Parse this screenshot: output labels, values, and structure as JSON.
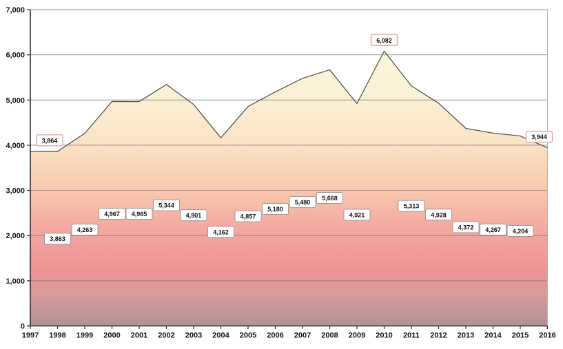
{
  "chart_data": {
    "type": "area",
    "title": "",
    "xlabel": "",
    "ylabel": "",
    "ylim": [
      0,
      7000
    ],
    "y_tick_interval": 1000,
    "y_tick_labels": [
      "0",
      "1,000",
      "2,000",
      "3,000",
      "4,000",
      "5,000",
      "6,000",
      "7,000"
    ],
    "grid": true,
    "legend_position": "none",
    "categories": [
      "1997",
      "1998",
      "1999",
      "2000",
      "2001",
      "2002",
      "2003",
      "2004",
      "2005",
      "2006",
      "2007",
      "2008",
      "2009",
      "2010",
      "2011",
      "2012",
      "2013",
      "2014",
      "2015",
      "2016"
    ],
    "values": [
      3864,
      3863,
      4263,
      4967,
      4965,
      5344,
      4901,
      4162,
      4857,
      5180,
      5480,
      5668,
      4921,
      6082,
      5313,
      4928,
      4372,
      4267,
      4204,
      3944
    ],
    "points": [
      {
        "year": "1997",
        "value": 3864,
        "label": "3,864",
        "style": "highlight"
      },
      {
        "year": "1998",
        "value": 3863,
        "label": "3,863",
        "style": "normal"
      },
      {
        "year": "1999",
        "value": 4263,
        "label": "4,263",
        "style": "normal"
      },
      {
        "year": "2000",
        "value": 4967,
        "label": "4,967",
        "style": "normal"
      },
      {
        "year": "2001",
        "value": 4965,
        "label": "4,965",
        "style": "normal"
      },
      {
        "year": "2002",
        "value": 5344,
        "label": "5,344",
        "style": "normal"
      },
      {
        "year": "2003",
        "value": 4901,
        "label": "4,901",
        "style": "normal"
      },
      {
        "year": "2004",
        "value": 4162,
        "label": "4,162",
        "style": "normal"
      },
      {
        "year": "2005",
        "value": 4857,
        "label": "4,857",
        "style": "normal"
      },
      {
        "year": "2006",
        "value": 5180,
        "label": "5,180",
        "style": "normal"
      },
      {
        "year": "2007",
        "value": 5480,
        "label": "5,480",
        "style": "normal"
      },
      {
        "year": "2008",
        "value": 5668,
        "label": "5,668",
        "style": "normal"
      },
      {
        "year": "2009",
        "value": 4921,
        "label": "4,921",
        "style": "normal"
      },
      {
        "year": "2010",
        "value": 6082,
        "label": "6,082",
        "style": "highlight"
      },
      {
        "year": "2011",
        "value": 5313,
        "label": "5,313",
        "style": "normal"
      },
      {
        "year": "2012",
        "value": 4928,
        "label": "4,928",
        "style": "normal"
      },
      {
        "year": "2013",
        "value": 4372,
        "label": "4,372",
        "style": "normal"
      },
      {
        "year": "2014",
        "value": 4267,
        "label": "4,267",
        "style": "normal"
      },
      {
        "year": "2015",
        "value": 4204,
        "label": "4,204",
        "style": "normal"
      },
      {
        "year": "2016",
        "value": 3944,
        "label": "3,944",
        "style": "highlight"
      }
    ],
    "colors": {
      "area_gradient": [
        "#FCF6DE",
        "#FAF1D6",
        "#FAE3C5",
        "#F8C9AE",
        "#F3A69F",
        "#ED9295",
        "#D79B9B",
        "#AE9396"
      ],
      "area_gradient_offsets": [
        0,
        0.16,
        0.34,
        0.5,
        0.66,
        0.8,
        0.89,
        1
      ],
      "series_line": "#57544D",
      "gridline": "#8A7D76",
      "axis": "#2E2E2E",
      "plot_right_border": "#B5B5B5",
      "label_bg": "#FFFFFF",
      "label_border": "#999999",
      "highlight_label_border": "#E3A6A7",
      "text": "#111111"
    }
  }
}
